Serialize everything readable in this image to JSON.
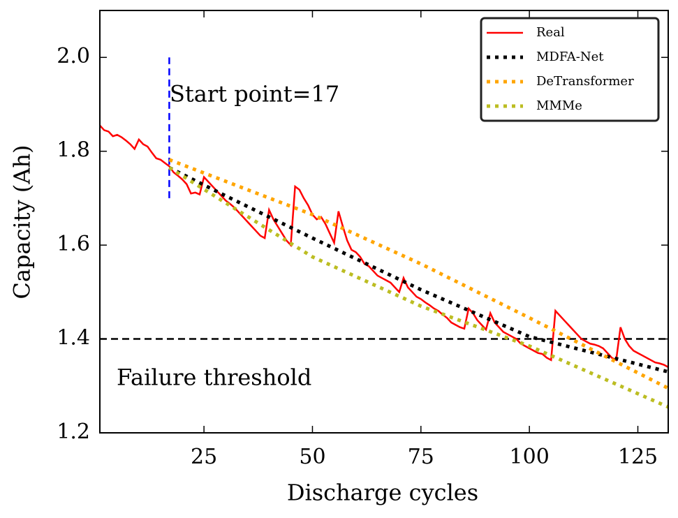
{
  "chart_data": {
    "type": "line",
    "xlabel": "Discharge cycles",
    "ylabel": "Capacity (Ah)",
    "xlim": [
      1,
      132
    ],
    "ylim": [
      1.2,
      2.1
    ],
    "xticks": [
      25,
      50,
      75,
      100,
      125
    ],
    "yticks": [
      1.2,
      1.4,
      1.6,
      1.8,
      {
        "value": 2,
        "label": "2.0"
      }
    ],
    "legend": "upper right",
    "series": [
      {
        "name": "Real",
        "color": "#ff0000",
        "style": "solid",
        "x": [
          1,
          2,
          3,
          4,
          5,
          6,
          7,
          8,
          9,
          10,
          11,
          12,
          13,
          14,
          15,
          16,
          17,
          18,
          19,
          20,
          21,
          22,
          23,
          24,
          25,
          26,
          27,
          28,
          29,
          30,
          31,
          32,
          33,
          34,
          35,
          36,
          37,
          38,
          39,
          40,
          41,
          42,
          43,
          44,
          45,
          46,
          47,
          48,
          49,
          50,
          51,
          52,
          53,
          54,
          55,
          56,
          57,
          58,
          59,
          60,
          61,
          62,
          63,
          64,
          65,
          66,
          67,
          68,
          69,
          70,
          71,
          72,
          73,
          74,
          75,
          76,
          77,
          78,
          79,
          80,
          81,
          82,
          83,
          84,
          85,
          86,
          87,
          88,
          89,
          90,
          91,
          92,
          93,
          94,
          95,
          96,
          97,
          98,
          99,
          100,
          101,
          102,
          103,
          104,
          105,
          106,
          107,
          108,
          109,
          110,
          111,
          112,
          113,
          114,
          115,
          116,
          117,
          118,
          119,
          120,
          121,
          122,
          123,
          124,
          125,
          126,
          127,
          128,
          129,
          130,
          131,
          132
        ],
        "values": [
          1.855,
          1.845,
          1.842,
          1.832,
          1.835,
          1.83,
          1.823,
          1.815,
          1.805,
          1.825,
          1.815,
          1.81,
          1.797,
          1.785,
          1.782,
          1.775,
          1.768,
          1.755,
          1.748,
          1.74,
          1.73,
          1.71,
          1.712,
          1.708,
          1.745,
          1.735,
          1.725,
          1.715,
          1.705,
          1.695,
          1.688,
          1.68,
          1.67,
          1.66,
          1.65,
          1.64,
          1.63,
          1.62,
          1.615,
          1.675,
          1.655,
          1.64,
          1.625,
          1.61,
          1.6,
          1.725,
          1.718,
          1.7,
          1.685,
          1.665,
          1.655,
          1.66,
          1.645,
          1.625,
          1.605,
          1.672,
          1.64,
          1.61,
          1.59,
          1.585,
          1.575,
          1.56,
          1.555,
          1.545,
          1.535,
          1.53,
          1.525,
          1.52,
          1.51,
          1.5,
          1.53,
          1.51,
          1.5,
          1.49,
          1.485,
          1.478,
          1.472,
          1.465,
          1.46,
          1.452,
          1.445,
          1.435,
          1.43,
          1.425,
          1.422,
          1.465,
          1.455,
          1.44,
          1.43,
          1.42,
          1.455,
          1.435,
          1.425,
          1.415,
          1.41,
          1.405,
          1.4,
          1.39,
          1.385,
          1.38,
          1.375,
          1.37,
          1.368,
          1.36,
          1.355,
          1.46,
          1.45,
          1.44,
          1.43,
          1.42,
          1.41,
          1.4,
          1.395,
          1.39,
          1.388,
          1.385,
          1.38,
          1.37,
          1.36,
          1.355,
          1.425,
          1.4,
          1.385,
          1.375,
          1.37,
          1.365,
          1.36,
          1.355,
          1.35,
          1.348,
          1.345,
          1.34
        ]
      },
      {
        "name": "MDFA-Net",
        "color": "#000000",
        "style": "dotted",
        "x": [
          17,
          30,
          50,
          75,
          100,
          132
        ],
        "values": [
          1.765,
          1.705,
          1.615,
          1.505,
          1.405,
          1.33
        ]
      },
      {
        "name": "DeTransformer",
        "color": "#ffa500",
        "style": "dotted",
        "x": [
          17,
          50,
          75,
          100,
          132
        ],
        "values": [
          1.782,
          1.665,
          1.56,
          1.445,
          1.295
        ]
      },
      {
        "name": "MMMe",
        "color": "#bcbd22",
        "style": "dotted",
        "x": [
          17,
          30,
          50,
          75,
          100,
          132
        ],
        "values": [
          1.765,
          1.69,
          1.575,
          1.47,
          1.385,
          1.255
        ]
      }
    ],
    "vline": {
      "x": 17,
      "ymin": 1.7,
      "ymax": 2.0,
      "color": "#0000ff"
    },
    "hline": {
      "y": 1.4,
      "color": "#000000"
    },
    "annotations": [
      "Start point=17",
      "Failure threshold"
    ]
  }
}
